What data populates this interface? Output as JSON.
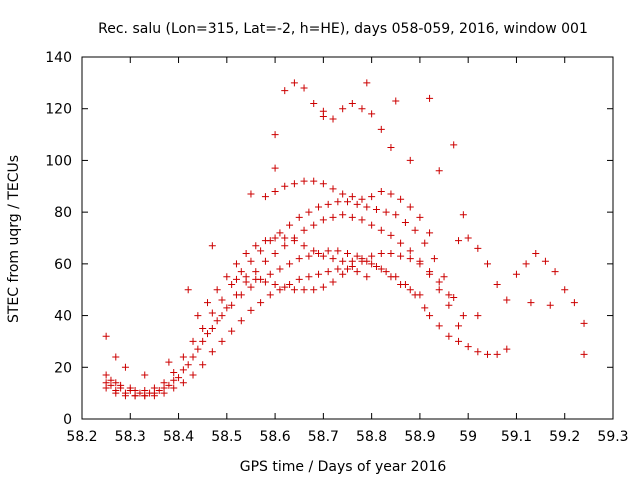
{
  "chart_data": {
    "type": "scatter",
    "title": "Rec. salu (Lon=315, Lat=-2, h=HE), days 058-059, 2016, window 001",
    "xlabel": "GPS time / Days of year 2016",
    "ylabel": "STEC from uqrg / TECUs",
    "xlim": [
      58.2,
      59.3
    ],
    "ylim": [
      0,
      140
    ],
    "xticks": [
      58.2,
      58.3,
      58.4,
      58.5,
      58.6,
      58.7,
      58.8,
      58.9,
      59.0,
      59.1,
      59.2,
      59.3
    ],
    "xtick_labels": [
      "58.2",
      "58.3",
      "58.4",
      "58.5",
      "58.6",
      "58.7",
      "58.8",
      "58.9",
      "59",
      "59.1",
      "59.2",
      "59.3"
    ],
    "yticks": [
      0,
      20,
      40,
      60,
      80,
      100,
      120,
      140
    ],
    "ytick_labels": [
      "0",
      "20",
      "40",
      "60",
      "80",
      "100",
      "120",
      "140"
    ],
    "grid": false,
    "legend": "none",
    "marker": "plus",
    "color": "#cc0000",
    "series": [
      {
        "x": [
          58.25,
          58.26,
          58.27,
          58.28,
          58.3,
          58.31,
          58.33,
          58.35,
          58.37,
          58.39,
          58.41,
          58.43,
          58.45,
          58.47,
          58.49,
          58.51,
          58.53,
          58.55,
          58.57,
          58.59,
          58.61,
          58.63,
          58.65,
          58.67,
          58.69,
          58.71,
          58.73,
          58.75,
          58.77,
          58.79,
          58.81,
          58.83,
          58.85,
          58.87,
          58.89,
          58.91,
          58.93,
          58.95,
          58.97,
          58.99
        ],
        "y": [
          17,
          15,
          14,
          13,
          12,
          11,
          11,
          12,
          14,
          18,
          24,
          30,
          35,
          41,
          46,
          52,
          57,
          61,
          65,
          69,
          72,
          75,
          78,
          80,
          82,
          83,
          84,
          84,
          83,
          82,
          81,
          80,
          79,
          76,
          73,
          68,
          62,
          55,
          47,
          40
        ]
      },
      {
        "x": [
          58.25,
          58.26,
          58.28,
          58.3,
          58.32,
          58.34,
          58.36,
          58.38,
          58.4,
          58.42,
          58.44,
          58.46,
          58.48,
          58.5,
          58.52,
          58.54,
          58.56,
          58.58,
          58.6,
          58.62,
          58.64,
          58.66,
          58.68,
          58.7,
          58.72,
          58.74,
          58.76,
          58.78,
          58.8,
          58.82,
          58.84,
          58.86,
          58.88,
          58.9,
          58.92,
          58.94,
          58.96,
          58.98
        ],
        "y": [
          14,
          13,
          12,
          11,
          10,
          10,
          11,
          13,
          16,
          21,
          27,
          33,
          38,
          43,
          48,
          53,
          57,
          61,
          64,
          67,
          70,
          73,
          75,
          77,
          78,
          79,
          78,
          77,
          75,
          73,
          71,
          68,
          65,
          61,
          56,
          50,
          44,
          36
        ]
      },
      {
        "x": [
          58.25,
          58.27,
          58.29,
          58.31,
          58.33,
          58.35,
          58.37,
          58.39,
          58.41,
          58.43,
          58.45,
          58.47,
          58.49,
          58.51,
          58.53,
          58.55,
          58.57,
          58.59,
          58.61,
          58.63,
          58.65,
          58.67,
          58.69,
          58.71,
          58.73,
          58.75,
          58.77,
          58.79,
          58.81,
          58.83,
          58.85,
          58.87,
          58.89,
          58.91
        ],
        "y": [
          12,
          11,
          10,
          9,
          9,
          10,
          12,
          15,
          19,
          24,
          30,
          35,
          40,
          44,
          48,
          51,
          54,
          56,
          58,
          60,
          62,
          63,
          64,
          65,
          65,
          64,
          63,
          61,
          59,
          57,
          55,
          52,
          48,
          43
        ]
      },
      {
        "x": [
          58.27,
          58.29,
          58.31,
          58.33,
          58.35,
          58.37,
          58.39,
          58.41,
          58.43,
          58.45,
          58.47,
          58.49,
          58.51,
          58.53,
          58.55,
          58.57,
          58.59,
          58.61,
          58.63,
          58.65,
          58.67,
          58.69,
          58.71,
          58.73,
          58.75,
          58.77,
          58.79
        ],
        "y": [
          10,
          9,
          9,
          9,
          9,
          10,
          12,
          14,
          17,
          21,
          26,
          30,
          34,
          38,
          42,
          45,
          48,
          50,
          52,
          54,
          55,
          56,
          57,
          58,
          58,
          57,
          55
        ]
      },
      {
        "x": [
          58.44,
          58.46,
          58.48,
          58.5,
          58.52,
          58.54,
          58.56,
          58.58,
          58.6,
          58.62,
          58.64,
          58.66,
          58.68,
          58.7,
          58.72,
          58.74,
          58.76,
          58.78,
          58.8,
          58.82,
          58.84,
          58.86,
          58.88,
          58.9,
          58.92,
          58.94,
          58.96
        ],
        "y": [
          40,
          45,
          50,
          55,
          60,
          64,
          67,
          69,
          70,
          70,
          69,
          67,
          65,
          63,
          62,
          61,
          61,
          62,
          63,
          64,
          64,
          63,
          62,
          60,
          57,
          53,
          48
        ]
      },
      {
        "x": [
          58.52,
          58.54,
          58.56,
          58.58,
          58.6,
          58.62,
          58.64,
          58.66,
          58.68,
          58.7,
          58.72,
          58.74,
          58.76,
          58.78,
          58.8,
          58.82,
          58.84,
          58.86,
          58.88,
          58.9
        ],
        "y": [
          54,
          55,
          54,
          53,
          52,
          51,
          50,
          50,
          50,
          51,
          53,
          56,
          59,
          61,
          60,
          58,
          55,
          52,
          50,
          48
        ]
      },
      {
        "x": [
          58.58,
          58.6,
          58.62,
          58.64,
          58.66,
          58.68,
          58.7,
          58.72,
          58.74,
          58.76,
          58.78,
          58.8,
          58.82,
          58.84,
          58.86,
          58.88,
          58.9,
          58.92
        ],
        "y": [
          86,
          88,
          90,
          91,
          92,
          92,
          91,
          89,
          87,
          86,
          85,
          86,
          88,
          87,
          85,
          82,
          78,
          72
        ]
      },
      {
        "x": [
          58.6,
          58.62,
          58.64,
          58.66,
          58.68,
          58.7,
          58.72,
          58.74,
          58.76,
          58.78,
          58.8,
          58.82,
          58.84
        ],
        "y": [
          110,
          127,
          130,
          128,
          122,
          117,
          116,
          120,
          122,
          120,
          118,
          112,
          105
        ]
      },
      {
        "x": [
          58.92,
          58.94,
          58.96,
          58.98,
          59.0,
          59.02,
          59.04,
          59.06,
          59.08
        ],
        "y": [
          40,
          36,
          32,
          30,
          28,
          26,
          25,
          25,
          27
        ]
      },
      {
        "x": [
          58.98,
          59.0,
          59.02,
          59.04,
          59.06,
          59.08,
          59.1,
          59.12,
          59.14,
          59.16,
          59.18,
          59.2,
          59.22,
          59.24
        ],
        "y": [
          69,
          70,
          66,
          60,
          52,
          46,
          56,
          60,
          64,
          61,
          57,
          50,
          45,
          37
        ]
      },
      {
        "x": [
          58.25,
          58.27,
          58.29,
          58.33,
          58.38,
          58.42,
          58.47,
          58.55,
          58.6,
          58.7,
          58.79,
          58.85,
          58.88,
          58.92,
          58.94,
          58.97,
          58.99,
          59.02,
          59.13,
          59.17,
          59.24
        ],
        "y": [
          32,
          24,
          20,
          17,
          22,
          50,
          67,
          87,
          97,
          119,
          130,
          123,
          100,
          124,
          96,
          106,
          79,
          40,
          45,
          44,
          25
        ]
      }
    ]
  }
}
